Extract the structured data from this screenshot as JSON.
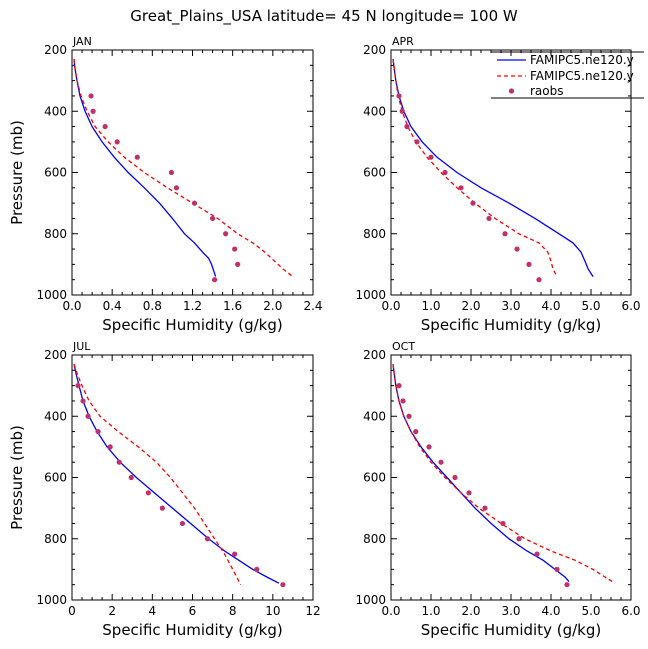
{
  "figure": {
    "title": "Great_Plains_USA  latitude= 45 N longitude= 100 W"
  },
  "legend": {
    "entries": [
      {
        "label": "FAMIPC5.ne120.y",
        "style": "solid",
        "color": "#0000ff"
      },
      {
        "label": "FAMIPC5.ne120.y",
        "style": "dashed",
        "color": "#ff0000"
      },
      {
        "label": "raobs",
        "style": "marker",
        "color": "#c0306a"
      }
    ]
  },
  "chart_data": [
    {
      "type": "line",
      "panel": "JAN",
      "xlabel": "Specific Humidity (g/kg)",
      "ylabel": "Pressure (mb)",
      "xlim": [
        0,
        2.4
      ],
      "ylim": [
        1000,
        200
      ],
      "xticks": [
        0.0,
        0.4,
        0.8,
        1.2,
        1.6,
        2.0,
        2.4
      ],
      "xtick_labels": [
        "0.0",
        "0.4",
        "0.8",
        "1.2",
        "1.6",
        "2.0",
        "2.4"
      ],
      "yticks": [
        200,
        400,
        600,
        800,
        1000
      ],
      "series": [
        {
          "name": "FAMIPC5.ne120.y",
          "style": "solid",
          "color": "#0000ff",
          "x": [
            0.02,
            0.03,
            0.05,
            0.08,
            0.13,
            0.2,
            0.3,
            0.42,
            0.56,
            0.72,
            0.87,
            1.0,
            1.12,
            1.22,
            1.3,
            1.36,
            1.39,
            1.41,
            1.43
          ],
          "y": [
            230,
            260,
            300,
            350,
            400,
            450,
            500,
            550,
            600,
            650,
            700,
            750,
            800,
            830,
            860,
            880,
            900,
            920,
            940
          ]
        },
        {
          "name": "FAMIPC5.ne120.y",
          "style": "dashed",
          "color": "#ff0000",
          "x": [
            0.02,
            0.03,
            0.05,
            0.09,
            0.15,
            0.23,
            0.36,
            0.52,
            0.72,
            0.95,
            1.2,
            1.45,
            1.65,
            1.8,
            1.92,
            2.02,
            2.1,
            2.2
          ],
          "y": [
            230,
            260,
            300,
            350,
            400,
            450,
            500,
            550,
            600,
            650,
            700,
            750,
            800,
            830,
            860,
            890,
            915,
            940
          ]
        },
        {
          "name": "raobs",
          "style": "marker",
          "color": "#c0306a",
          "x": [
            0.19,
            0.21,
            0.33,
            0.45,
            0.65,
            0.99,
            1.04,
            1.22,
            1.4,
            1.53,
            1.62,
            1.65,
            1.42
          ],
          "y": [
            350,
            400,
            450,
            500,
            550,
            600,
            650,
            700,
            750,
            800,
            850,
            900,
            950
          ]
        }
      ]
    },
    {
      "type": "line",
      "panel": "APR",
      "xlabel": "Specific Humidity (g/kg)",
      "ylabel": "Pressure (mb)",
      "xlim": [
        0,
        6
      ],
      "ylim": [
        1000,
        200
      ],
      "xticks": [
        0.0,
        1.0,
        2.0,
        3.0,
        4.0,
        5.0,
        6.0
      ],
      "xtick_labels": [
        "0.0",
        "1.0",
        "2.0",
        "3.0",
        "4.0",
        "5.0",
        "6.0"
      ],
      "yticks": [
        200,
        400,
        600,
        800,
        1000
      ],
      "series": [
        {
          "name": "FAMIPC5.ne120.y",
          "style": "solid",
          "color": "#0000ff",
          "x": [
            0.05,
            0.08,
            0.12,
            0.2,
            0.32,
            0.5,
            0.78,
            1.15,
            1.65,
            2.25,
            2.95,
            3.6,
            4.2,
            4.55,
            4.75,
            4.85,
            4.93,
            5.05
          ],
          "y": [
            230,
            260,
            300,
            350,
            400,
            450,
            500,
            550,
            600,
            650,
            700,
            750,
            800,
            830,
            860,
            890,
            915,
            940
          ]
        },
        {
          "name": "FAMIPC5.ne120.y",
          "style": "dashed",
          "color": "#ff0000",
          "x": [
            0.05,
            0.08,
            0.12,
            0.18,
            0.28,
            0.42,
            0.62,
            0.9,
            1.25,
            1.65,
            2.1,
            2.6,
            3.2,
            3.7,
            3.92,
            4.0,
            4.05,
            4.15
          ],
          "y": [
            230,
            260,
            300,
            350,
            400,
            450,
            500,
            550,
            600,
            650,
            700,
            750,
            800,
            830,
            860,
            890,
            915,
            940
          ]
        },
        {
          "name": "raobs",
          "style": "marker",
          "color": "#c0306a",
          "x": [
            0.2,
            0.28,
            0.4,
            0.65,
            1.0,
            1.35,
            1.75,
            2.05,
            2.45,
            2.85,
            3.15,
            3.45,
            3.7
          ],
          "y": [
            350,
            400,
            450,
            500,
            550,
            600,
            650,
            700,
            750,
            800,
            850,
            900,
            950
          ]
        }
      ]
    },
    {
      "type": "line",
      "panel": "JUL",
      "xlabel": "Specific Humidity (g/kg)",
      "ylabel": "Pressure (mb)",
      "xlim": [
        0,
        12
      ],
      "ylim": [
        1000,
        200
      ],
      "xticks": [
        0,
        2,
        4,
        6,
        8,
        10,
        12
      ],
      "xtick_labels": [
        "0",
        "2",
        "4",
        "6",
        "8",
        "10",
        "12"
      ],
      "yticks": [
        200,
        400,
        600,
        800,
        1000
      ],
      "series": [
        {
          "name": "FAMIPC5.ne120.y",
          "style": "solid",
          "color": "#0000ff",
          "x": [
            0.1,
            0.2,
            0.35,
            0.55,
            0.85,
            1.25,
            1.75,
            2.4,
            3.2,
            4.1,
            5.0,
            5.9,
            6.8,
            7.6,
            8.3,
            9.0,
            9.7,
            10.3
          ],
          "y": [
            230,
            260,
            300,
            350,
            400,
            450,
            500,
            550,
            600,
            650,
            700,
            750,
            800,
            840,
            870,
            900,
            925,
            945
          ]
        },
        {
          "name": "FAMIPC5.ne120.y",
          "style": "dashed",
          "color": "#ff0000",
          "x": [
            0.1,
            0.25,
            0.5,
            0.85,
            1.4,
            2.3,
            3.3,
            4.2,
            4.9,
            5.5,
            6.1,
            6.6,
            7.1,
            7.6,
            8.0,
            8.4
          ],
          "y": [
            230,
            260,
            300,
            350,
            400,
            450,
            500,
            550,
            600,
            650,
            700,
            750,
            800,
            850,
            900,
            950
          ]
        },
        {
          "name": "raobs",
          "style": "marker",
          "color": "#c0306a",
          "x": [
            0.3,
            0.55,
            0.8,
            1.3,
            1.9,
            2.35,
            2.95,
            3.8,
            4.5,
            5.5,
            6.75,
            8.1,
            9.2,
            10.5
          ],
          "y": [
            300,
            350,
            400,
            450,
            500,
            550,
            600,
            650,
            700,
            750,
            800,
            850,
            900,
            950
          ]
        }
      ]
    },
    {
      "type": "line",
      "panel": "OCT",
      "xlabel": "Specific Humidity (g/kg)",
      "ylabel": "Pressure (mb)",
      "xlim": [
        0,
        6
      ],
      "ylim": [
        1000,
        200
      ],
      "xticks": [
        0.0,
        1.0,
        2.0,
        3.0,
        4.0,
        5.0,
        6.0
      ],
      "xtick_labels": [
        "0.0",
        "1.0",
        "2.0",
        "3.0",
        "4.0",
        "5.0",
        "6.0"
      ],
      "yticks": [
        200,
        400,
        600,
        800,
        1000
      ],
      "series": [
        {
          "name": "FAMIPC5.ne120.y",
          "style": "solid",
          "color": "#0000ff",
          "x": [
            0.05,
            0.08,
            0.12,
            0.2,
            0.32,
            0.5,
            0.75,
            1.05,
            1.4,
            1.75,
            2.1,
            2.5,
            2.95,
            3.4,
            3.8,
            4.1,
            4.35,
            4.45
          ],
          "y": [
            230,
            260,
            300,
            350,
            400,
            450,
            500,
            550,
            600,
            650,
            700,
            750,
            800,
            840,
            870,
            900,
            925,
            940
          ]
        },
        {
          "name": "FAMIPC5.ne120.y",
          "style": "dashed",
          "color": "#ff0000",
          "x": [
            0.05,
            0.08,
            0.12,
            0.2,
            0.32,
            0.5,
            0.72,
            1.0,
            1.35,
            1.75,
            2.2,
            2.75,
            3.35,
            4.0,
            4.6,
            5.05,
            5.35,
            5.6
          ],
          "y": [
            230,
            260,
            300,
            350,
            400,
            450,
            500,
            550,
            600,
            650,
            700,
            750,
            800,
            840,
            870,
            900,
            925,
            945
          ]
        },
        {
          "name": "raobs",
          "style": "marker",
          "color": "#c0306a",
          "x": [
            0.2,
            0.3,
            0.45,
            0.62,
            0.95,
            1.25,
            1.6,
            1.95,
            2.35,
            2.8,
            3.2,
            3.65,
            4.15,
            4.4
          ],
          "y": [
            300,
            350,
            400,
            450,
            500,
            550,
            600,
            650,
            700,
            750,
            800,
            850,
            900,
            950
          ]
        }
      ]
    }
  ]
}
